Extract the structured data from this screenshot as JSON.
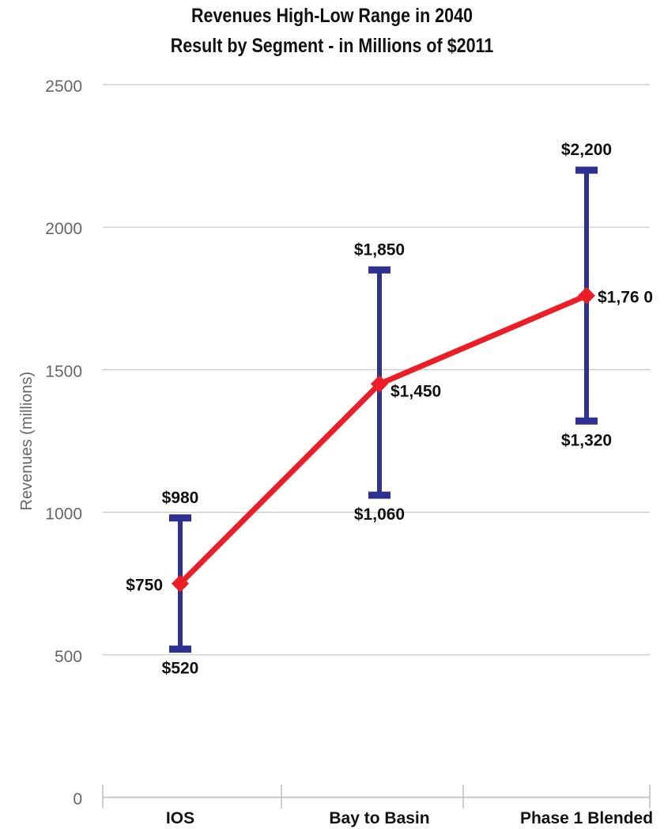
{
  "chart_data": {
    "type": "line",
    "title": [
      "Revenues High-Low Range in 2040",
      "Result by Segment - in Millions of $2011"
    ],
    "ylabel": "Revenues (millions)",
    "xlabel": "",
    "ylim": [
      0,
      2500
    ],
    "yticks": [
      0,
      500,
      1000,
      1500,
      2000,
      2500
    ],
    "categories": [
      "IOS",
      "Bay to Basin",
      "Phase 1 Blended"
    ],
    "grid": true,
    "legend": "none",
    "series": [
      {
        "values": [
          750,
          1450,
          1760
        ],
        "labels": [
          "$750",
          "$1,450",
          "$1,76 0"
        ],
        "color": "#ee1c25"
      }
    ],
    "ranges": {
      "low": [
        520,
        1060,
        1320
      ],
      "high": [
        980,
        1850,
        2200
      ],
      "low_labels": [
        "$520",
        "$1,060",
        "$1,320"
      ],
      "high_labels": [
        "$980",
        "$1,850",
        "$2,200"
      ],
      "color": "#2e3192"
    }
  }
}
